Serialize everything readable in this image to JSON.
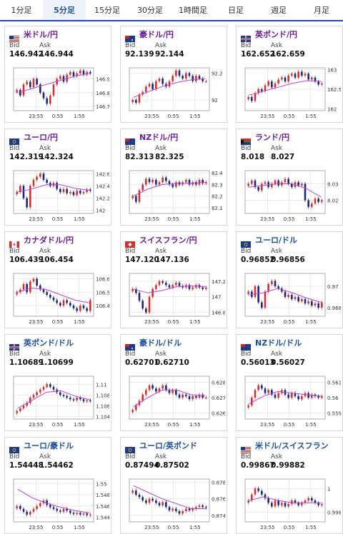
{
  "tabs": [
    "1分足",
    "5分足",
    "15分足",
    "30分足",
    "1時間足",
    "日足",
    "週足",
    "月足"
  ],
  "active_tab": 1,
  "labels": {
    "bid": "Bid",
    "ask": "Ask"
  },
  "cards": [
    {
      "pair": "米ドル/円",
      "bid": "146.942",
      "ask": "146.944",
      "flags": [
        "us",
        "jp"
      ],
      "chart_data": {
        "type": "candlestick",
        "x": [
          "23:55",
          "0:55",
          "1:55"
        ],
        "yticks": [
          "146.9",
          "146.8",
          "146.7"
        ],
        "ylim": [
          146.67,
          146.98
        ],
        "closes": [
          146.82,
          146.78,
          146.86,
          146.88,
          146.84,
          146.9,
          146.86,
          146.8,
          146.76,
          146.72,
          146.78,
          146.86,
          146.9,
          146.92,
          146.88,
          146.93,
          146.95,
          146.92,
          146.94,
          146.96,
          146.93,
          146.95,
          146.94
        ],
        "ma": [
          146.8,
          146.83,
          146.86,
          146.89,
          146.92,
          146.94
        ]
      }
    },
    {
      "pair": "豪ドル/円",
      "bid": "92.139",
      "ask": "92.144",
      "flags": [
        "au",
        "jp"
      ],
      "chart_data": {
        "type": "candlestick",
        "x": [
          "23:55",
          "0:55",
          "1:55"
        ],
        "yticks": [
          "92.2",
          "92"
        ],
        "ylim": [
          91.92,
          92.24
        ],
        "closes": [
          92.0,
          91.98,
          92.04,
          92.06,
          92.1,
          92.12,
          92.08,
          92.14,
          92.16,
          92.12,
          92.1,
          92.14,
          92.18,
          92.22,
          92.18,
          92.16,
          92.2,
          92.18,
          92.14,
          92.18,
          92.16,
          92.14,
          92.14
        ],
        "ma": [
          92.02,
          92.06,
          92.1,
          92.13,
          92.15,
          92.16
        ]
      }
    },
    {
      "pair": "英ポンド/円",
      "bid": "162.652",
      "ask": "162.659",
      "flags": [
        "gb",
        "jp"
      ],
      "chart_data": {
        "type": "candlestick",
        "x": [
          "23:55",
          "0:55",
          "1:55"
        ],
        "yticks": [
          "163",
          "162.5",
          "162"
        ],
        "ylim": [
          161.95,
          163.05
        ],
        "closes": [
          162.3,
          162.2,
          162.4,
          162.5,
          162.45,
          162.6,
          162.7,
          162.55,
          162.65,
          162.75,
          162.8,
          162.7,
          162.85,
          162.9,
          162.8,
          162.95,
          162.85,
          162.9,
          162.75,
          162.8,
          162.7,
          162.62,
          162.65
        ],
        "ma": [
          162.35,
          162.45,
          162.55,
          162.65,
          162.72,
          162.7
        ]
      }
    },
    {
      "pair": "ユーロ/円",
      "bid": "142.319",
      "ask": "142.324",
      "flags": [
        "eu",
        "jp"
      ],
      "chart_data": {
        "type": "candlestick",
        "x": [
          "23:55",
          "0:55",
          "1:55"
        ],
        "yticks": [
          "142.6",
          "142.4",
          "142.2",
          "142"
        ],
        "ylim": [
          141.95,
          142.65
        ],
        "closes": [
          142.3,
          142.4,
          142.2,
          142.05,
          142.4,
          142.5,
          142.55,
          142.6,
          142.5,
          142.45,
          142.4,
          142.45,
          142.35,
          142.3,
          142.35,
          142.28,
          142.3,
          142.25,
          142.32,
          142.28,
          142.3,
          142.34,
          142.32
        ],
        "ma": [
          142.3,
          142.35,
          142.42,
          142.42,
          142.36,
          142.33
        ]
      }
    },
    {
      "pair": "NZドル/円",
      "bid": "82.313",
      "ask": "82.325",
      "flags": [
        "nz",
        "jp"
      ],
      "chart_data": {
        "type": "candlestick",
        "x": [
          "23:55",
          "0:55",
          "1:55"
        ],
        "yticks": [
          "82.4",
          "82.3",
          "82.2",
          "82.1"
        ],
        "ylim": [
          82.05,
          82.42
        ],
        "closes": [
          82.2,
          82.15,
          82.25,
          82.3,
          82.35,
          82.32,
          82.34,
          82.3,
          82.32,
          82.36,
          82.33,
          82.3,
          82.28,
          82.32,
          82.3,
          82.32,
          82.34,
          82.3,
          82.32,
          82.3,
          82.34,
          82.31,
          82.32
        ],
        "ma": [
          82.2,
          82.26,
          82.3,
          82.31,
          82.31,
          82.32
        ]
      }
    },
    {
      "pair": "ランド/円",
      "bid": "8.018",
      "ask": "8.027",
      "flags": [
        "za",
        "jp"
      ],
      "chart_data": {
        "type": "candlestick",
        "x": [
          "23:55",
          "0:55",
          "1:55"
        ],
        "yticks": [
          "8.03",
          "8.02"
        ],
        "ylim": [
          8.012,
          8.038
        ],
        "closes": [
          8.03,
          8.032,
          8.028,
          8.026,
          8.03,
          8.031,
          8.028,
          8.03,
          8.032,
          8.029,
          8.031,
          8.033,
          8.03,
          8.028,
          8.031,
          8.029,
          8.03,
          8.02,
          8.016,
          8.018,
          8.021,
          8.019,
          8.02
        ],
        "ma": [
          8.028,
          8.029,
          8.03,
          8.03,
          8.027,
          8.022
        ]
      }
    },
    {
      "pair": "カナダドル/円",
      "bid": "106.439",
      "ask": "106.454",
      "flags": [
        "ca",
        "jp"
      ],
      "chart_data": {
        "type": "candlestick",
        "x": [
          "23:55",
          "0:55",
          "1:55"
        ],
        "yticks": [
          "106.6",
          "106.5",
          "106.4"
        ],
        "ylim": [
          106.32,
          106.64
        ],
        "closes": [
          106.5,
          106.52,
          106.56,
          106.5,
          106.58,
          106.6,
          106.55,
          106.52,
          106.5,
          106.48,
          106.46,
          106.44,
          106.42,
          106.4,
          106.44,
          106.42,
          106.4,
          106.38,
          106.36,
          106.4,
          106.38,
          106.36,
          106.44
        ],
        "ma": [
          106.5,
          106.53,
          106.52,
          106.48,
          106.44,
          106.42
        ]
      }
    },
    {
      "pair": "スイスフラン/円",
      "bid": "147.120",
      "ask": "147.136",
      "flags": [
        "ch",
        "jp"
      ],
      "chart_data": {
        "type": "candlestick",
        "x": [
          "23:55",
          "0:55",
          "1:55"
        ],
        "yticks": [
          "147.2",
          "147",
          "146.8"
        ],
        "ylim": [
          146.75,
          147.3
        ],
        "closes": [
          147.1,
          147.05,
          146.95,
          146.85,
          146.8,
          147.0,
          147.1,
          147.15,
          147.2,
          147.18,
          147.15,
          147.12,
          147.15,
          147.18,
          147.14,
          147.12,
          147.15,
          147.1,
          147.12,
          147.15,
          147.12,
          147.1,
          147.12
        ],
        "ma": [
          147.1,
          147.05,
          147.08,
          147.13,
          147.14,
          147.13
        ]
      }
    },
    {
      "pair": "ユーロ/ドル",
      "bid": "0.96852",
      "ask": "0.96856",
      "flags": [
        "eu",
        "us"
      ],
      "chart_data": {
        "type": "candlestick",
        "x": [
          "23:55",
          "0:55",
          "1:55"
        ],
        "yticks": [
          "0.97",
          "0.968"
        ],
        "ylim": [
          0.9672,
          0.9712
        ],
        "closes": [
          0.9695,
          0.969,
          0.97,
          0.9685,
          0.968,
          0.9695,
          0.9702,
          0.9705,
          0.97,
          0.9698,
          0.9695,
          0.969,
          0.9692,
          0.9688,
          0.969,
          0.9686,
          0.9688,
          0.9684,
          0.9686,
          0.9682,
          0.9684,
          0.968,
          0.9685
        ],
        "ma": [
          0.9692,
          0.9694,
          0.9698,
          0.9694,
          0.9689,
          0.9685
        ]
      }
    },
    {
      "pair": "英ポンド/ドル",
      "bid": "1.10689",
      "ask": "1.10699",
      "flags": [
        "gb",
        "us"
      ],
      "chart_data": {
        "type": "candlestick",
        "x": [
          "23:55",
          "0:55",
          "1:55"
        ],
        "yticks": [
          "1.11",
          "1.108",
          "1.106",
          "1.104"
        ],
        "ylim": [
          1.1035,
          1.1115
        ],
        "closes": [
          1.105,
          1.1055,
          1.106,
          1.1065,
          1.1075,
          1.108,
          1.1085,
          1.109,
          1.1095,
          1.11,
          1.1095,
          1.109,
          1.1085,
          1.108,
          1.1078,
          1.1075,
          1.1072,
          1.107,
          1.1075,
          1.1072,
          1.1068,
          1.107,
          1.1069
        ],
        "ma": [
          1.1055,
          1.107,
          1.1085,
          1.1088,
          1.1078,
          1.1071
        ]
      }
    },
    {
      "pair": "豪ドル/ドル",
      "bid": "0.62701",
      "ask": "0.62710",
      "flags": [
        "au",
        "us"
      ],
      "chart_data": {
        "type": "candlestick",
        "x": [
          "23:55",
          "0:55",
          "1:55"
        ],
        "yticks": [
          "0.628",
          "0.627",
          "0.626"
        ],
        "ylim": [
          0.6256,
          0.6284
        ],
        "closes": [
          0.6262,
          0.6265,
          0.6268,
          0.6272,
          0.6275,
          0.6278,
          0.6276,
          0.6274,
          0.6276,
          0.6278,
          0.6275,
          0.6273,
          0.6275,
          0.6272,
          0.627,
          0.6272,
          0.6271,
          0.6269,
          0.6271,
          0.627,
          0.6272,
          0.627,
          0.627
        ],
        "ma": [
          0.6264,
          0.627,
          0.6275,
          0.6275,
          0.6272,
          0.6271
        ]
      }
    },
    {
      "pair": "NZドル/ドル",
      "bid": "0.56013",
      "ask": "0.56027",
      "flags": [
        "nz",
        "us"
      ],
      "chart_data": {
        "type": "candlestick",
        "x": [
          "23:55",
          "0:55",
          "1:55"
        ],
        "yticks": [
          "0.561",
          "0.56",
          "0.559"
        ],
        "ylim": [
          0.5586,
          0.5614
        ],
        "closes": [
          0.5595,
          0.56,
          0.5605,
          0.5608,
          0.5606,
          0.5603,
          0.5605,
          0.5602,
          0.56,
          0.5603,
          0.5605,
          0.5602,
          0.56,
          0.5603,
          0.5601,
          0.5599,
          0.5601,
          0.5603,
          0.56,
          0.5602,
          0.5601,
          0.56,
          0.5601
        ],
        "ma": [
          0.5596,
          0.5601,
          0.5604,
          0.5603,
          0.5602,
          0.5601
        ]
      }
    },
    {
      "pair": "ユーロ/豪ドル",
      "bid": "1.54448",
      "ask": "1.54462",
      "flags": [
        "eu",
        "au"
      ],
      "chart_data": {
        "type": "candlestick",
        "x": [
          "23:55",
          "0:55",
          "1:55"
        ],
        "yticks": [
          "1.55",
          "1.548",
          "1.546",
          "1.544"
        ],
        "ylim": [
          1.5432,
          1.5508
        ],
        "closes": [
          1.546,
          1.5455,
          1.545,
          1.5445,
          1.545,
          1.5455,
          1.546,
          1.5465,
          1.547,
          1.5462,
          1.5458,
          1.5455,
          1.5452,
          1.545,
          1.5455,
          1.5452,
          1.5448,
          1.5446,
          1.5448,
          1.5445,
          1.5447,
          1.5444,
          1.5445
        ],
        "ma": [
          1.549,
          1.5475,
          1.5465,
          1.5458,
          1.5452,
          1.5448
        ]
      }
    },
    {
      "pair": "ユーロ/英ポンド",
      "bid": "0.87494",
      "ask": "0.87502",
      "flags": [
        "eu",
        "gb"
      ],
      "chart_data": {
        "type": "candlestick",
        "x": [
          "23:55",
          "0:55",
          "1:55"
        ],
        "yticks": [
          "0.878",
          "0.876",
          "0.874"
        ],
        "ylim": [
          0.8732,
          0.8784
        ],
        "closes": [
          0.877,
          0.8765,
          0.8762,
          0.8758,
          0.8755,
          0.876,
          0.8758,
          0.8755,
          0.8752,
          0.8756,
          0.875,
          0.8746,
          0.8748,
          0.8745,
          0.8742,
          0.8745,
          0.8748,
          0.8746,
          0.8748,
          0.875,
          0.8752,
          0.875,
          0.8749
        ],
        "ma": [
          0.8776,
          0.8768,
          0.876,
          0.8754,
          0.8748,
          0.8748
        ]
      }
    },
    {
      "pair": "米ドル/スイスフラン",
      "bid": "0.99867",
      "ask": "0.99882",
      "flags": [
        "us",
        "ch"
      ],
      "chart_data": {
        "type": "candlestick",
        "x": [
          "23:55",
          "0:55",
          "1:55"
        ],
        "yticks": [
          "1",
          "0.998"
        ],
        "ylim": [
          0.9972,
          1.0008
        ],
        "closes": [
          0.999,
          0.9995,
          1.0,
          0.9998,
          0.9995,
          0.9992,
          0.9988,
          0.9985,
          0.999,
          0.9986,
          0.9988,
          0.9985,
          0.9987,
          0.999,
          0.9988,
          0.9986,
          0.9988,
          0.999,
          0.9992,
          0.999,
          0.9988,
          0.9986,
          0.9987
        ],
        "ma": [
          0.999,
          0.9993,
          0.999,
          0.9988,
          0.9988,
          0.9988
        ]
      }
    }
  ],
  "colors": {
    "up": "#d32f2f",
    "down": "#1a237e",
    "ma": "#c03dd8",
    "grid": "#dcdcdc",
    "frame": "#999999",
    "axis": "#333333",
    "accent": "#1c4f9c",
    "pair_purple": "#6a1b9a"
  }
}
